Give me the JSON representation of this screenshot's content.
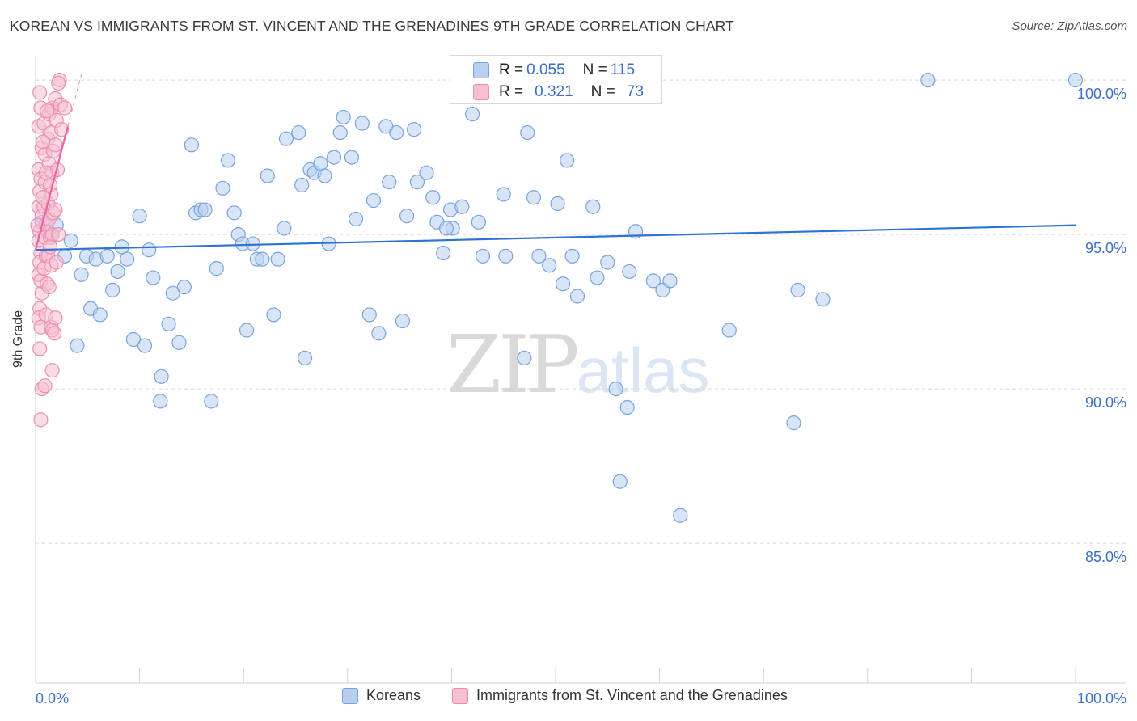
{
  "title": "KOREAN VS IMMIGRANTS FROM ST. VINCENT AND THE GRENADINES 9TH GRADE CORRELATION CHART",
  "source": "Source: ZipAtlas.com",
  "watermark": {
    "zip": "ZIP",
    "atlas": "atlas"
  },
  "colors": {
    "blue_fill": "#b8cff0",
    "blue_stroke": "#7aa3de",
    "blue_line": "#2f72d0",
    "pink_fill": "#f6bfd2",
    "pink_stroke": "#ec8fb0",
    "pink_line": "#e8669a",
    "grid": "#d8d8d8",
    "axis_text": "#3b6fc9"
  },
  "stats": [
    {
      "r_label": "R = ",
      "r_value": "0.055",
      "n_label": "N = ",
      "n_value": "115",
      "series": "blue"
    },
    {
      "r_label": "R = ",
      "r_value": "0.321",
      "n_label": "N = ",
      "n_value": "73",
      "series": "pink"
    }
  ],
  "legend": [
    {
      "label": "Koreans",
      "series": "blue"
    },
    {
      "label": "Immigrants from St. Vincent and the Grenadines",
      "series": "pink"
    }
  ],
  "chart_data": {
    "type": "scatter",
    "title": "KOREAN VS IMMIGRANTS FROM ST. VINCENT AND THE GRENADINES 9TH GRADE CORRELATION CHART",
    "xlabel": "",
    "ylabel": "9th Grade",
    "xlim": [
      0,
      100
    ],
    "ylim": [
      80,
      100.5
    ],
    "x_tick_labels": [
      "0.0%",
      "100.0%"
    ],
    "y_ticks": [
      85,
      90,
      95,
      100
    ],
    "y_tick_labels": [
      "85.0%",
      "90.0%",
      "95.0%",
      "100.0%"
    ],
    "grid": true,
    "legend_position": "bottom",
    "series": [
      {
        "name": "Koreans",
        "color": "#7aa3de",
        "trend": {
          "x": [
            0,
            100
          ],
          "y": [
            94.5,
            95.3
          ]
        },
        "points": [
          [
            0.6,
            95.4
          ],
          [
            1.2,
            95.1
          ],
          [
            1.6,
            95.0
          ],
          [
            2.0,
            95.3
          ],
          [
            2.8,
            94.3
          ],
          [
            3.4,
            94.8
          ],
          [
            4.0,
            91.4
          ],
          [
            4.4,
            93.7
          ],
          [
            4.9,
            94.3
          ],
          [
            5.3,
            92.6
          ],
          [
            5.8,
            94.2
          ],
          [
            6.2,
            92.4
          ],
          [
            6.9,
            94.3
          ],
          [
            7.4,
            93.2
          ],
          [
            7.9,
            93.8
          ],
          [
            8.3,
            94.6
          ],
          [
            8.8,
            94.2
          ],
          [
            9.4,
            91.6
          ],
          [
            10.0,
            95.6
          ],
          [
            10.5,
            91.4
          ],
          [
            10.9,
            94.5
          ],
          [
            11.3,
            93.6
          ],
          [
            12.0,
            89.6
          ],
          [
            12.1,
            90.4
          ],
          [
            12.8,
            92.1
          ],
          [
            13.2,
            93.1
          ],
          [
            13.8,
            91.5
          ],
          [
            14.3,
            93.3
          ],
          [
            15.0,
            97.9
          ],
          [
            15.4,
            95.7
          ],
          [
            15.9,
            95.8
          ],
          [
            16.3,
            95.8
          ],
          [
            16.9,
            89.6
          ],
          [
            17.4,
            93.9
          ],
          [
            18.0,
            96.5
          ],
          [
            18.5,
            97.4
          ],
          [
            19.1,
            95.7
          ],
          [
            19.5,
            95.0
          ],
          [
            19.9,
            94.7
          ],
          [
            20.3,
            91.9
          ],
          [
            20.9,
            94.7
          ],
          [
            21.3,
            94.2
          ],
          [
            21.8,
            94.2
          ],
          [
            22.3,
            96.9
          ],
          [
            22.9,
            92.4
          ],
          [
            23.3,
            94.2
          ],
          [
            23.9,
            95.2
          ],
          [
            24.1,
            98.1
          ],
          [
            25.3,
            98.3
          ],
          [
            25.6,
            96.6
          ],
          [
            25.9,
            91.0
          ],
          [
            26.4,
            97.1
          ],
          [
            26.8,
            97.0
          ],
          [
            27.4,
            97.3
          ],
          [
            27.8,
            96.9
          ],
          [
            28.2,
            94.7
          ],
          [
            28.7,
            97.5
          ],
          [
            29.3,
            98.3
          ],
          [
            29.6,
            98.8
          ],
          [
            30.4,
            97.5
          ],
          [
            30.8,
            95.5
          ],
          [
            31.4,
            98.6
          ],
          [
            32.1,
            92.4
          ],
          [
            32.5,
            96.1
          ],
          [
            33.0,
            91.8
          ],
          [
            33.7,
            98.5
          ],
          [
            34.0,
            96.7
          ],
          [
            34.7,
            98.3
          ],
          [
            35.3,
            92.2
          ],
          [
            35.7,
            95.6
          ],
          [
            36.4,
            98.4
          ],
          [
            36.7,
            96.7
          ],
          [
            37.6,
            97.0
          ],
          [
            38.2,
            96.2
          ],
          [
            38.6,
            95.4
          ],
          [
            39.2,
            94.4
          ],
          [
            39.9,
            95.8
          ],
          [
            40.1,
            95.2
          ],
          [
            40.5,
            100.0
          ],
          [
            41.0,
            95.9
          ],
          [
            42.0,
            98.9
          ],
          [
            42.6,
            95.4
          ],
          [
            43.0,
            94.3
          ],
          [
            45.2,
            94.3
          ],
          [
            47.0,
            91.0
          ],
          [
            47.3,
            98.3
          ],
          [
            47.9,
            96.2
          ],
          [
            48.4,
            94.3
          ],
          [
            49.0,
            100.0
          ],
          [
            49.4,
            94.0
          ],
          [
            50.2,
            96.0
          ],
          [
            50.7,
            93.4
          ],
          [
            51.1,
            97.4
          ],
          [
            51.6,
            94.3
          ],
          [
            52.1,
            93.0
          ],
          [
            53.6,
            95.9
          ],
          [
            54.0,
            93.6
          ],
          [
            55.0,
            94.1
          ],
          [
            55.8,
            90.0
          ],
          [
            56.2,
            87.0
          ],
          [
            56.9,
            89.4
          ],
          [
            57.1,
            93.8
          ],
          [
            57.7,
            95.1
          ],
          [
            59.4,
            93.5
          ],
          [
            60.3,
            93.2
          ],
          [
            61.0,
            93.5
          ],
          [
            62.0,
            85.9
          ],
          [
            66.7,
            91.9
          ],
          [
            72.9,
            88.9
          ],
          [
            73.3,
            93.2
          ],
          [
            75.7,
            92.9
          ],
          [
            85.8,
            100.0
          ],
          [
            100.0,
            100.0
          ],
          [
            39.5,
            95.2
          ],
          [
            45.0,
            96.3
          ]
        ]
      },
      {
        "name": "Immigrants from St. Vincent and the Grenadines",
        "color": "#ec8fb0",
        "trend": {
          "x": [
            0,
            3.1
          ],
          "y": [
            94.5,
            98.5
          ]
        },
        "points": [
          [
            0.3,
            98.5
          ],
          [
            0.5,
            99.1
          ],
          [
            0.4,
            99.6
          ],
          [
            0.6,
            97.8
          ],
          [
            0.3,
            97.1
          ],
          [
            0.5,
            96.8
          ],
          [
            0.4,
            96.4
          ],
          [
            0.3,
            95.9
          ],
          [
            0.6,
            95.6
          ],
          [
            0.4,
            95.1
          ],
          [
            0.3,
            94.8
          ],
          [
            0.5,
            94.4
          ],
          [
            0.4,
            94.1
          ],
          [
            0.3,
            93.7
          ],
          [
            0.5,
            93.5
          ],
          [
            0.6,
            93.1
          ],
          [
            0.4,
            92.6
          ],
          [
            0.3,
            92.3
          ],
          [
            0.5,
            92.0
          ],
          [
            0.4,
            91.3
          ],
          [
            0.6,
            90.0
          ],
          [
            0.5,
            89.0
          ],
          [
            0.8,
            98.6
          ],
          [
            0.9,
            97.6
          ],
          [
            0.9,
            96.7
          ],
          [
            0.8,
            95.9
          ],
          [
            1.0,
            95.3
          ],
          [
            0.9,
            94.9
          ],
          [
            1.0,
            94.3
          ],
          [
            0.8,
            93.9
          ],
          [
            1.1,
            93.4
          ],
          [
            1.0,
            92.4
          ],
          [
            0.9,
            90.1
          ],
          [
            1.3,
            98.9
          ],
          [
            1.2,
            98.1
          ],
          [
            1.3,
            97.3
          ],
          [
            1.4,
            96.6
          ],
          [
            1.2,
            96.0
          ],
          [
            1.3,
            95.5
          ],
          [
            1.4,
            94.9
          ],
          [
            1.2,
            94.3
          ],
          [
            1.3,
            93.3
          ],
          [
            1.5,
            92.0
          ],
          [
            1.6,
            99.1
          ],
          [
            1.5,
            98.3
          ],
          [
            1.7,
            97.7
          ],
          [
            1.6,
            97.0
          ],
          [
            1.5,
            96.3
          ],
          [
            1.7,
            95.7
          ],
          [
            1.6,
            95.0
          ],
          [
            1.5,
            94.0
          ],
          [
            1.6,
            91.9
          ],
          [
            1.6,
            90.6
          ],
          [
            1.9,
            99.4
          ],
          [
            2.0,
            98.7
          ],
          [
            1.9,
            97.9
          ],
          [
            2.1,
            97.1
          ],
          [
            1.9,
            95.8
          ],
          [
            2.2,
            95.0
          ],
          [
            2.0,
            94.1
          ],
          [
            1.9,
            92.3
          ],
          [
            1.8,
            91.8
          ],
          [
            2.3,
            100.0
          ],
          [
            2.4,
            99.2
          ],
          [
            2.5,
            98.4
          ],
          [
            2.8,
            99.1
          ],
          [
            1.1,
            99.0
          ],
          [
            0.7,
            98.0
          ],
          [
            0.7,
            96.2
          ],
          [
            1.0,
            97.0
          ],
          [
            1.4,
            94.6
          ],
          [
            0.2,
            95.3
          ],
          [
            2.2,
            99.9
          ]
        ]
      }
    ]
  }
}
